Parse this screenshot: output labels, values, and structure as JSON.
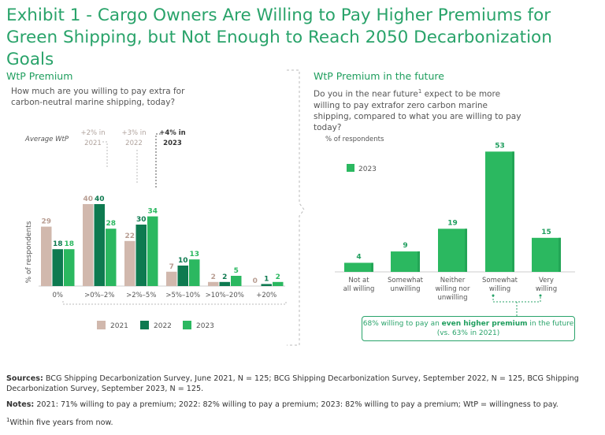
{
  "title": "Exhibit 1 - Cargo Owners Are Willing to Pay Higher Premiums for Green Shipping, but Not Enough to Reach 2050 Decarbonization Goals",
  "colors": {
    "y2021": "#d1b8ad",
    "y2022": "#0e7a50",
    "y2023": "#2bb860",
    "accent": "#29a36a"
  },
  "left": {
    "heading": "WtP Premium",
    "question": "How much are you willing to pay extra for carbon-neutral marine shipping, today?",
    "avg_label": "Average WtP",
    "avg_2021": "+2% in 2021",
    "avg_2022": "+3% in 2022",
    "avg_2023": "+4% in 2023"
  },
  "right": {
    "heading": "WtP Premium in the future",
    "question_a": "Do you in the near future",
    "question_sup": "1",
    "question_b": " expect to be more willing to pay extrafor zero carbon marine shipping, compared to what you are willing to pay today?",
    "callout_pre": "68% willing to pay an ",
    "callout_bold": "even higher premium",
    "callout_post": " in the future",
    "callout_sub": "(vs. 63% in 2021)"
  },
  "chart_data": [
    {
      "type": "bar",
      "title": "WtP Premium",
      "ylabel": "% of respondents",
      "categories": [
        "0%",
        ">0%–2%",
        ">2%–5%",
        ">5%–10%",
        ">10%–20%",
        "+20%"
      ],
      "series": [
        {
          "name": "2021",
          "values": [
            29,
            40,
            22,
            7,
            2,
            0
          ]
        },
        {
          "name": "2022",
          "values": [
            18,
            40,
            30,
            10,
            2,
            1
          ]
        },
        {
          "name": "2023",
          "values": [
            18,
            28,
            34,
            13,
            5,
            2
          ]
        }
      ],
      "ylim": [
        0,
        45
      ],
      "legend": [
        "2021",
        "2022",
        "2023"
      ]
    },
    {
      "type": "bar",
      "title": "WtP Premium in the future",
      "ylabel": "% of respondents",
      "categories": [
        "Not at all willing",
        "Somewhat unwilling",
        "Neither willing nor unwilling",
        "Somewhat willing",
        "Very willing"
      ],
      "series": [
        {
          "name": "2023",
          "values": [
            4,
            9,
            19,
            53,
            15
          ]
        }
      ],
      "ylim": [
        0,
        55
      ],
      "legend": [
        "2023"
      ]
    }
  ],
  "notes": {
    "sources_label": "Sources:",
    "sources": " BCG Shipping Decarbonization Survey, June 2021, N = 125; BCG Shipping Decarbonization Survey, September 2022, N = 125, BCG Shipping Decarbonization Survey, September 2023, N = 125.",
    "notes_label": "Notes:",
    "notes": " 2021: 71% willing to pay a premium; 2022: 82% willing to pay a premium; 2023: 82% willing to pay a premium;  WtP = willingness to pay.",
    "footnote_sup": "1",
    "footnote": "Within five years from now."
  }
}
